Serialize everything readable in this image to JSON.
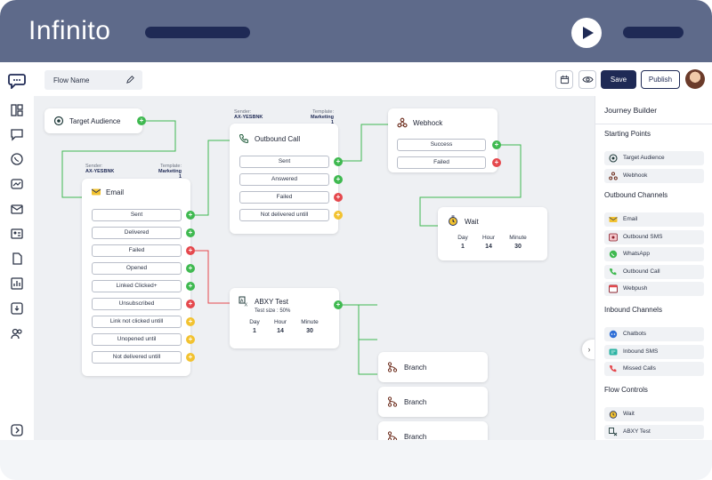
{
  "brand": "Infinito",
  "toolbar": {
    "flow_name": "Flow Name",
    "save": "Save",
    "publish": "Publish"
  },
  "nodes": {
    "target": {
      "title": "Target Audience"
    },
    "email": {
      "title": "Email",
      "sender_label": "Sender:",
      "sender": "AX-YESBNK",
      "template_label": "Template:",
      "template": "Marketing 1",
      "rows": [
        "Sent",
        "Delivered",
        "Failed",
        "Opened",
        "Linked Clicked+",
        "Unsubscribed",
        "Link not clicked untill",
        "Unopened until",
        "Not delivered untill"
      ]
    },
    "outbound": {
      "title": "Outbound Call",
      "sender_label": "Sender:",
      "sender": "AX-YESBNK",
      "template_label": "Template:",
      "template": "Marketing 1",
      "rows": [
        "Sent",
        "Answered",
        "Failed",
        "Not delivered untill"
      ]
    },
    "webhook": {
      "title": "Webhock",
      "rows": [
        "Success",
        "Failed"
      ]
    },
    "wait": {
      "title": "Wait",
      "labels": [
        "Day",
        "Hour",
        "Minute"
      ],
      "values": [
        "1",
        "14",
        "30"
      ]
    },
    "abxy": {
      "title": "ABXY Test",
      "test_size": "Test size : 50%",
      "labels": [
        "Day",
        "Hour",
        "Minute"
      ],
      "values": [
        "1",
        "14",
        "30"
      ]
    },
    "branches": [
      "Branch",
      "Branch",
      "Branch"
    ]
  },
  "panel": {
    "title": "Journey Builder",
    "sections": [
      {
        "heading": "Starting Points",
        "items": [
          {
            "label": "Target Audience",
            "icon": "target-icon"
          },
          {
            "label": "Webhook",
            "icon": "webhook-icon"
          }
        ]
      },
      {
        "heading": "Outbound Channels",
        "items": [
          {
            "label": "Email",
            "icon": "email-icon"
          },
          {
            "label": "Outbound SMS",
            "icon": "sms-icon"
          },
          {
            "label": "WhatsApp",
            "icon": "whatsapp-icon"
          },
          {
            "label": "Outbound Call",
            "icon": "phone-icon"
          },
          {
            "label": "Webpush",
            "icon": "webpush-icon"
          }
        ]
      },
      {
        "heading": "Inbound Channels",
        "items": [
          {
            "label": "Chatbots",
            "icon": "chatbot-icon"
          },
          {
            "label": "Inbound SMS",
            "icon": "inbound-sms-icon"
          },
          {
            "label": "Missed Calls",
            "icon": "missed-call-icon"
          }
        ]
      },
      {
        "heading": "Flow Controls",
        "items": [
          {
            "label": "Wait",
            "icon": "timer-icon"
          },
          {
            "label": "ABXY Test",
            "icon": "abxy-icon"
          }
        ]
      }
    ]
  },
  "colors": {
    "success": "#3fb950",
    "fail": "#e5484d",
    "pending": "#f2c230",
    "primary": "#1f2a55",
    "header": "#5e6a8a"
  }
}
